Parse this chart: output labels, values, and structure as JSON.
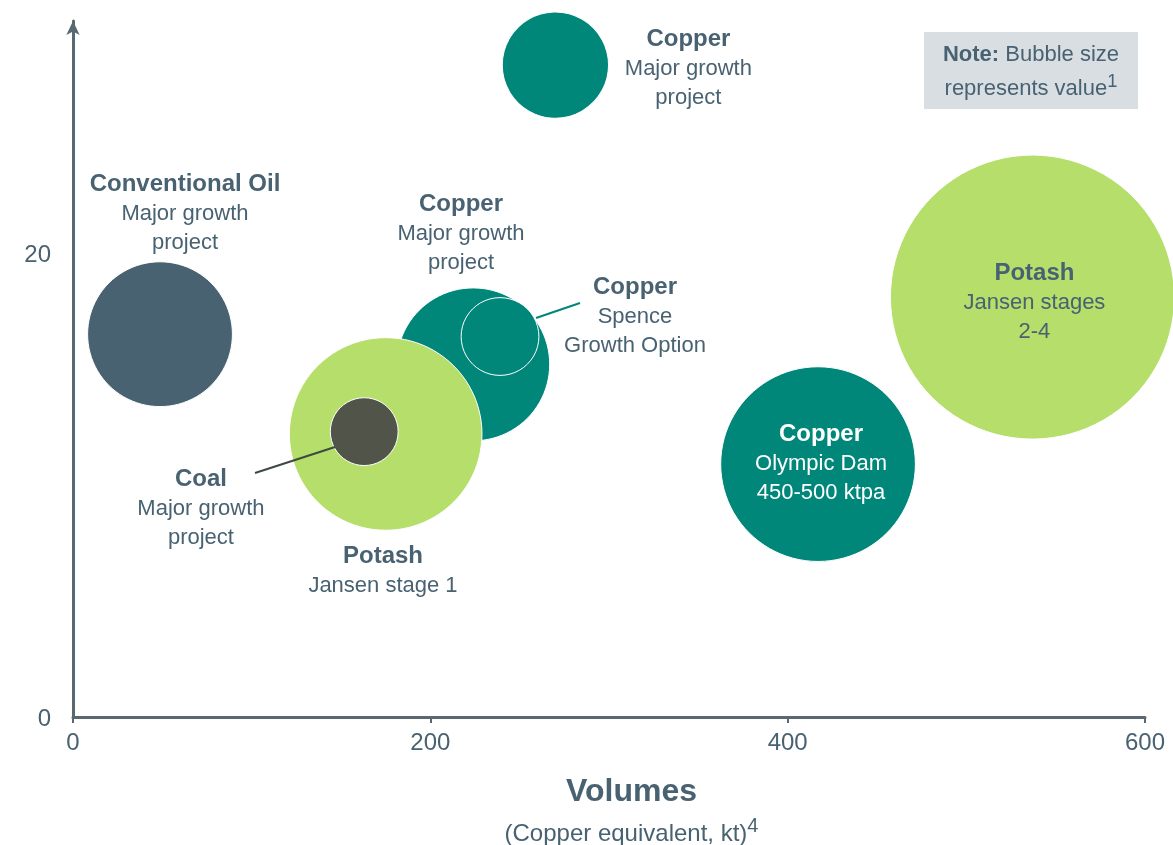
{
  "chart_data": {
    "type": "bubble",
    "xlabel": "Volumes\n(Copper equivalent, kt)$^{4}$",
    "x": [
      48.7,
      270,
      224,
      175,
      239,
      163,
      417,
      537
    ],
    "values": [
      16.5,
      28.1,
      15.2,
      12.2,
      16.4,
      12.3,
      10.9,
      18.1
    ],
    "sizes": [
      0.26,
      0.14,
      0.29,
      0.46,
      0.075,
      0.057,
      0.47,
      1
    ],
    "colors": [
      "#486272",
      "#00877a",
      "#00877a",
      "#b5de6a",
      "#00877a",
      "#515549",
      "#00877a",
      "#b5de6a"
    ],
    "xlim": [
      0,
      600
    ],
    "xticks": [
      0,
      200,
      400,
      600
    ],
    "ylim": [
      0,
      30
    ],
    "yticks": [
      0,
      20
    ],
    "annotations": [
      "Conventional Oil\nMajor growth\nproject",
      {
        "text": "Copper\nMajor growth\nproject",
        "x": 270,
        "y": 28.1
      },
      "Copper\nMajor growth\nproject",
      {
        "text": "Copper\nSpence\nGrowth Option",
        "x": 239,
        "y": 16.4
      },
      {
        "text": "Coal\nMajor growth\nproject",
        "x": 146.6,
        "y": 11.6
      },
      "Potash\nJansen stage 1",
      {
        "text": "Copper\nOlympic Dam\n450-500 ktpa",
        "x": 417,
        "y": 10.9
      },
      {
        "text": "Potash\nJansen stages\n2-4",
        "x": 537,
        "y": 18.1
      },
      "Note: Bubble size represents value$^{1}$"
    ]
  }
}
